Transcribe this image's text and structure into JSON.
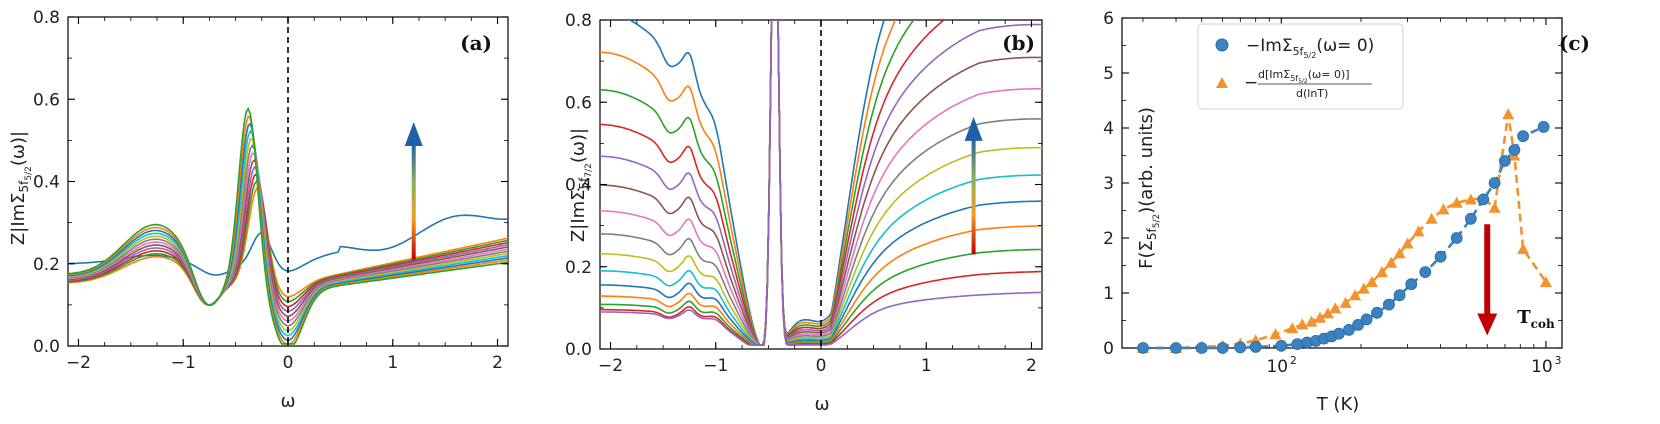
{
  "chart_data": [
    {
      "type": "line",
      "panel_label": "(a)",
      "xlabel": "ω",
      "ylabel": "Z|ImΣ 5f5/2 (ω)|",
      "ylabel_main": "Z|ImΣ",
      "ylabel_sub": "5f",
      "ylabel_subsub": "5/2",
      "ylabel_end": "(ω)|",
      "xlim": [
        -2.1,
        2.1
      ],
      "ylim": [
        0,
        0.8
      ],
      "xticks": [
        -2,
        -1,
        0,
        1,
        2
      ],
      "yticks": [
        0.0,
        0.2,
        0.4,
        0.6,
        0.8
      ],
      "xtick_labels": [
        "−2",
        "−1",
        "0",
        "1",
        "2"
      ],
      "ytick_labels": [
        "0.0",
        "0.2",
        "0.4",
        "0.6",
        "0.8"
      ],
      "vline_x": 0,
      "annotation_arrow": {
        "x": 1.2,
        "y_from": 0.21,
        "y_to": 0.53,
        "direction": "up"
      },
      "series_count": 13
    },
    {
      "type": "line",
      "panel_label": "(b)",
      "xlabel": "ω",
      "ylabel_main": "Z|ImΣ",
      "ylabel_sub": "5f",
      "ylabel_subsub": "7/2",
      "ylabel_end": "(ω)|",
      "xlim": [
        -2.1,
        2.1
      ],
      "ylim": [
        0,
        0.8
      ],
      "xticks": [
        -2,
        -1,
        0,
        1,
        2
      ],
      "yticks": [
        0.0,
        0.2,
        0.4,
        0.6,
        0.8
      ],
      "xtick_labels": [
        "−2",
        "−1",
        "0",
        "1",
        "2"
      ],
      "ytick_labels": [
        "0.0",
        "0.2",
        "0.4",
        "0.6",
        "0.8"
      ],
      "vline_x": 0,
      "annotation_arrow": {
        "x": 1.45,
        "y_from": 0.23,
        "y_to": 0.55,
        "direction": "up"
      },
      "series_count": 15
    },
    {
      "type": "scatter",
      "panel_label": "(c)",
      "xlabel": "T (K)",
      "ylabel_main": "F(Σ",
      "ylabel_sub": "5f",
      "ylabel_subsub": "5/2",
      "ylabel_end": ")(arb. units)",
      "xscale": "log",
      "xlim": [
        25,
        1150
      ],
      "ylim": [
        0,
        6
      ],
      "yticks": [
        0,
        1,
        2,
        3,
        4,
        5,
        6
      ],
      "ytick_labels": [
        "0",
        "1",
        "2",
        "3",
        "4",
        "5",
        "6"
      ],
      "xtick_labels": [
        "10",
        "10"
      ],
      "xtick_exponents": [
        "2",
        "3"
      ],
      "series": [
        {
          "name": "−ImΣ 5f5/2 (ω= 0)",
          "color": "#3a82c0",
          "marker": "circle",
          "x": [
            30,
            40,
            50,
            60,
            70,
            80,
            100,
            115,
            125,
            135,
            145,
            155,
            165,
            180,
            195,
            210,
            230,
            255,
            280,
            310,
            350,
            400,
            460,
            520,
            580,
            640,
            700,
            760,
            820,
            980
          ],
          "y": [
            0.0,
            0.0,
            0.0,
            0.0,
            0.01,
            0.02,
            0.04,
            0.07,
            0.1,
            0.13,
            0.17,
            0.21,
            0.26,
            0.33,
            0.42,
            0.52,
            0.64,
            0.79,
            0.96,
            1.16,
            1.38,
            1.66,
            2.0,
            2.35,
            2.7,
            3.0,
            3.4,
            3.6,
            3.85,
            4.02
          ]
        },
        {
          "name": "−d[ImΣ 5f5/2 (ω= 0)] / d(lnT)",
          "color": "#f4922d",
          "marker": "triangle",
          "x": [
            30,
            40,
            50,
            60,
            70,
            80,
            95,
            110,
            120,
            130,
            140,
            150,
            160,
            175,
            190,
            205,
            220,
            240,
            260,
            280,
            300,
            330,
            370,
            410,
            460,
            520,
            580,
            640,
            720,
            760,
            820,
            1000
          ],
          "y": [
            0.0,
            0.0,
            0.02,
            0.04,
            0.08,
            0.14,
            0.25,
            0.36,
            0.43,
            0.48,
            0.55,
            0.63,
            0.72,
            0.82,
            0.96,
            1.08,
            1.2,
            1.38,
            1.55,
            1.72,
            1.9,
            2.12,
            2.35,
            2.52,
            2.64,
            2.7,
            2.72,
            2.55,
            4.25,
            3.5,
            1.8,
            1.2
          ]
        }
      ],
      "legend_text_1": "−ImΣ",
      "legend_text_1_sub": "5f",
      "legend_text_1_subsub": "5/2",
      "legend_text_1_end": "(ω= 0)",
      "legend_text_2_minus": "−",
      "legend_text_2_num": "d[ImΣ",
      "legend_text_2_num_sub": "5f",
      "legend_text_2_num_subsub": "5/2",
      "legend_text_2_num_end": "(ω= 0)]",
      "legend_text_2_den": "d(lnT)",
      "legend_position": "upper-left",
      "annotation": "T",
      "annotation_sub": "coh",
      "annotation_arrow": {
        "x": 600,
        "y_from": 2.25,
        "y_to": 0.3,
        "direction": "down",
        "color": "#c00000"
      }
    }
  ],
  "colors": {
    "axis": "#000000",
    "arrow_top": "#1f5fa8",
    "arrow_bottom": "#c00000",
    "c_circle": "#3a82c0",
    "c_triangle": "#f4922d"
  }
}
